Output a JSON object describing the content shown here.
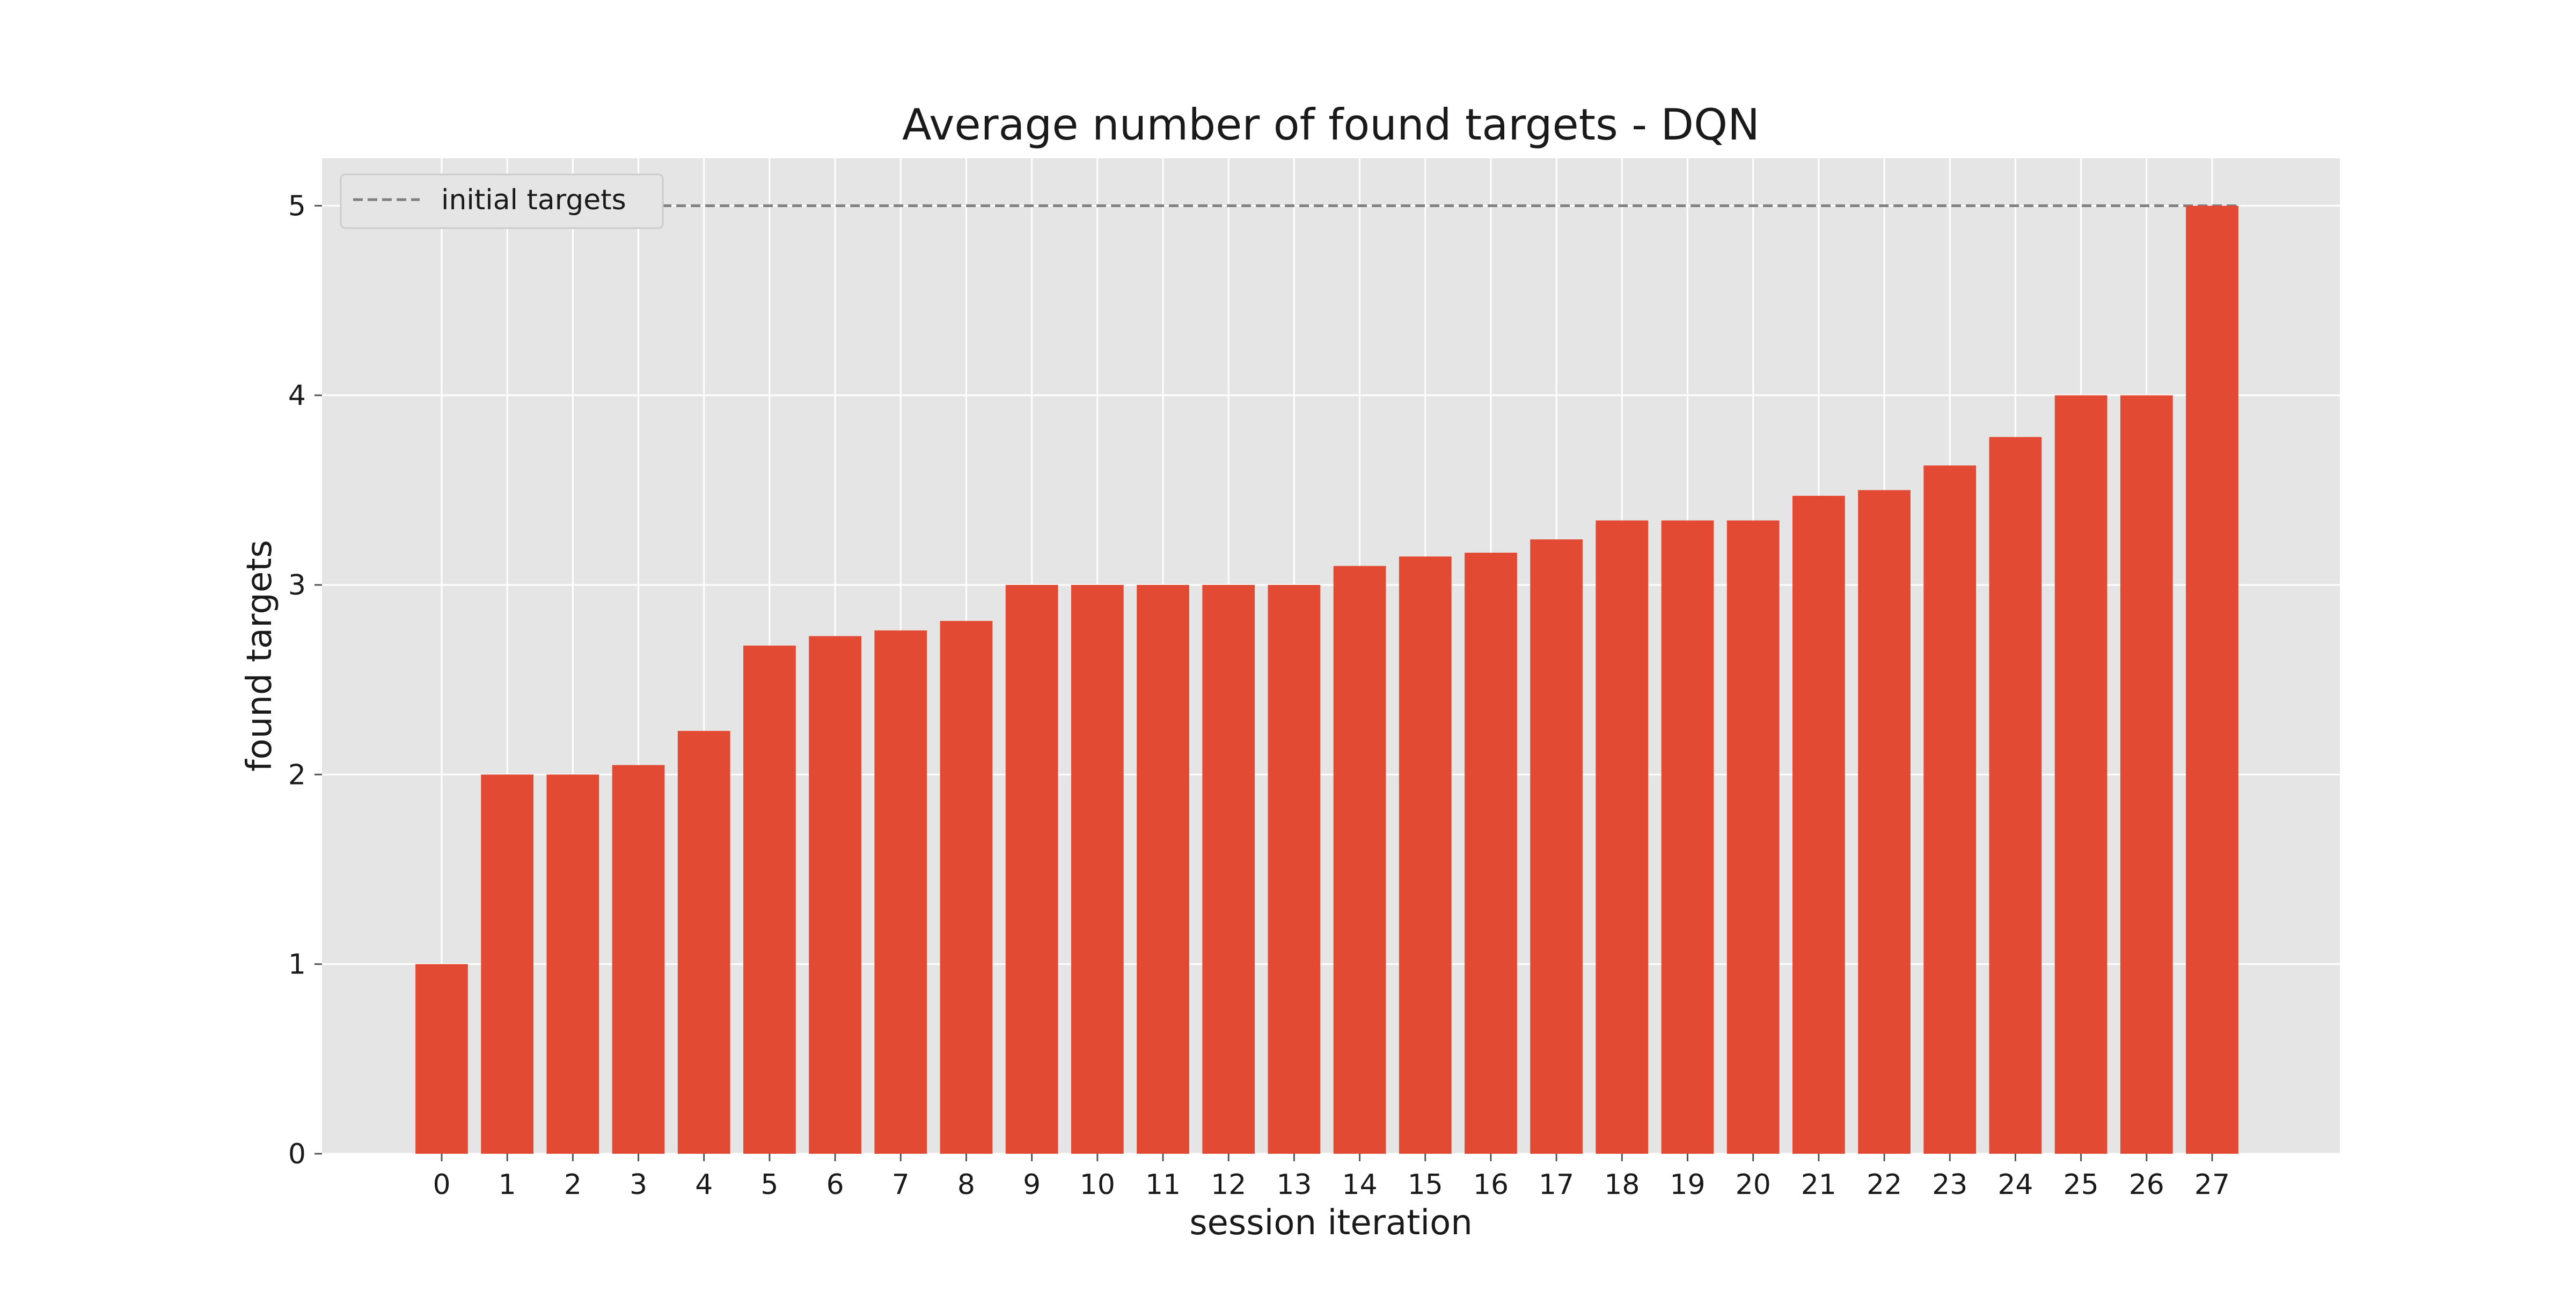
{
  "chart_data": {
    "type": "bar",
    "title": "Average number of found targets - DQN",
    "xlabel": "session iteration",
    "ylabel": "found targets",
    "categories": [
      "0",
      "1",
      "2",
      "3",
      "4",
      "5",
      "6",
      "7",
      "8",
      "9",
      "10",
      "11",
      "12",
      "13",
      "14",
      "15",
      "16",
      "17",
      "18",
      "19",
      "20",
      "21",
      "22",
      "23",
      "24",
      "25",
      "26",
      "27"
    ],
    "values": [
      1.0,
      2.0,
      2.0,
      2.05,
      2.23,
      2.68,
      2.73,
      2.76,
      2.81,
      3.0,
      3.0,
      3.0,
      3.0,
      3.0,
      3.1,
      3.15,
      3.17,
      3.24,
      3.34,
      3.34,
      3.34,
      3.47,
      3.5,
      3.63,
      3.78,
      4.0,
      4.0,
      5.0
    ],
    "ylim": [
      0,
      5.25
    ],
    "yticks": [
      0,
      1,
      2,
      3,
      4,
      5
    ],
    "bar_color": "#E24A33",
    "background_color": "#E5E5E5",
    "grid": true,
    "reference_line": {
      "label": "initial targets",
      "value": 5,
      "style": "dashed",
      "color": "#808080"
    },
    "legend": {
      "position": "top-left",
      "entries": [
        "initial targets"
      ]
    }
  }
}
